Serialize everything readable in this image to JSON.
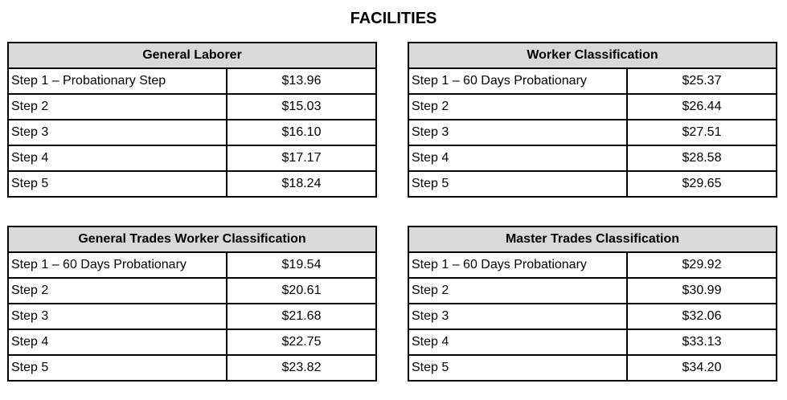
{
  "title": "FACILITIES",
  "tables": [
    {
      "heading": "General Laborer",
      "rows": [
        {
          "step": "Step 1 – Probationary Step",
          "rate": "$13.96"
        },
        {
          "step": "Step 2",
          "rate": "$15.03"
        },
        {
          "step": "Step 3",
          "rate": "$16.10"
        },
        {
          "step": "Step 4",
          "rate": "$17.17"
        },
        {
          "step": "Step 5",
          "rate": "$18.24"
        }
      ]
    },
    {
      "heading": "Worker Classification",
      "rows": [
        {
          "step": "Step 1 – 60 Days Probationary",
          "rate": "$25.37"
        },
        {
          "step": "Step 2",
          "rate": "$26.44"
        },
        {
          "step": "Step 3",
          "rate": "$27.51"
        },
        {
          "step": "Step 4",
          "rate": "$28.58"
        },
        {
          "step": "Step 5",
          "rate": "$29.65"
        }
      ]
    },
    {
      "heading": "General Trades Worker Classification",
      "rows": [
        {
          "step": "Step 1 – 60 Days Probationary",
          "rate": "$19.54"
        },
        {
          "step": "Step 2",
          "rate": "$20.61"
        },
        {
          "step": "Step 3",
          "rate": "$21.68"
        },
        {
          "step": "Step 4",
          "rate": "$22.75"
        },
        {
          "step": "Step 5",
          "rate": "$23.82"
        }
      ]
    },
    {
      "heading": "Master Trades Classification",
      "rows": [
        {
          "step": "Step 1 – 60 Days Probationary",
          "rate": "$29.92"
        },
        {
          "step": "Step 2",
          "rate": "$30.99"
        },
        {
          "step": "Step 3",
          "rate": "$32.06"
        },
        {
          "step": "Step 4",
          "rate": "$33.13"
        },
        {
          "step": "Step 5",
          "rate": "$34.20"
        }
      ]
    }
  ]
}
